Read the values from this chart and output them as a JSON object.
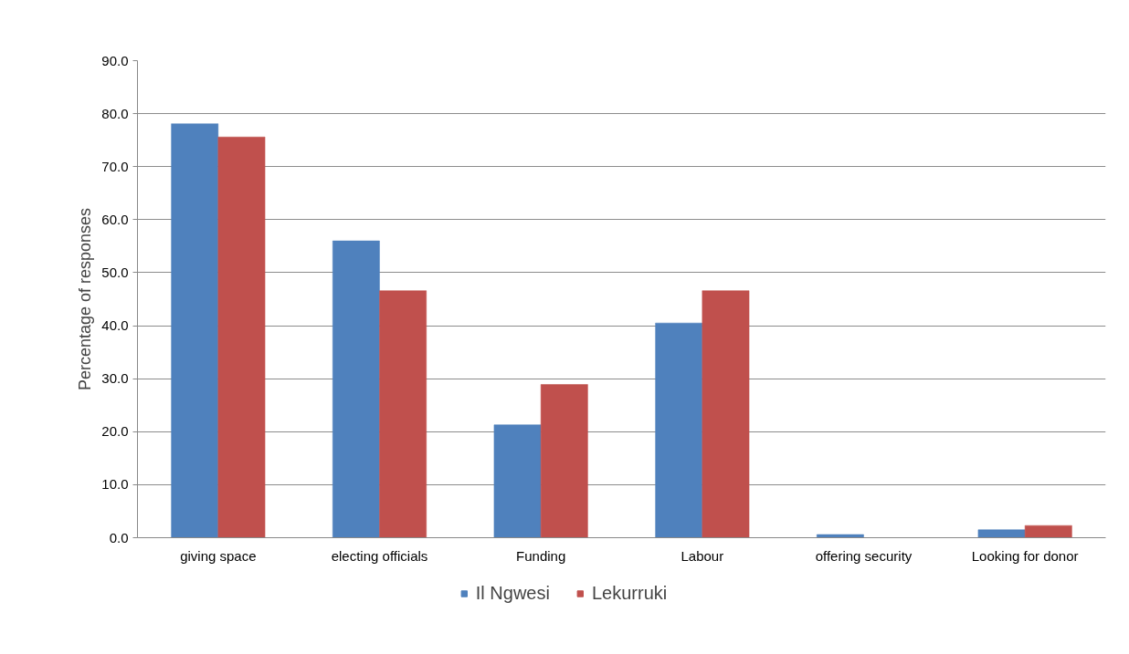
{
  "chart_data": {
    "type": "bar",
    "ylabel": "Percentage of responses",
    "categories": [
      "giving space",
      "electing officials",
      "Funding",
      "Labour",
      "offering security",
      "Looking for donor"
    ],
    "series": [
      {
        "name": "Il Ngwesi",
        "color": "#4f81bd",
        "values": [
          78.1,
          56.0,
          21.3,
          40.5,
          0.6,
          1.5
        ]
      },
      {
        "name": "Lekurruki",
        "color": "#c0504d",
        "values": [
          75.6,
          46.6,
          28.9,
          46.6,
          0.0,
          2.3
        ]
      }
    ],
    "ylim": [
      0,
      90
    ],
    "yticks": [
      {
        "value": 0,
        "label": "0.0"
      },
      {
        "value": 10,
        "label": "10.0"
      },
      {
        "value": 20,
        "label": "20.0"
      },
      {
        "value": 30,
        "label": "30.0"
      },
      {
        "value": 40,
        "label": "40.0"
      },
      {
        "value": 50,
        "label": "50.0"
      },
      {
        "value": 60,
        "label": "60.0"
      },
      {
        "value": 70,
        "label": "70.0"
      },
      {
        "value": 80,
        "label": "80.0"
      },
      {
        "value": 90,
        "label": "90.0"
      }
    ],
    "grid": "y",
    "legend": "bottom"
  }
}
